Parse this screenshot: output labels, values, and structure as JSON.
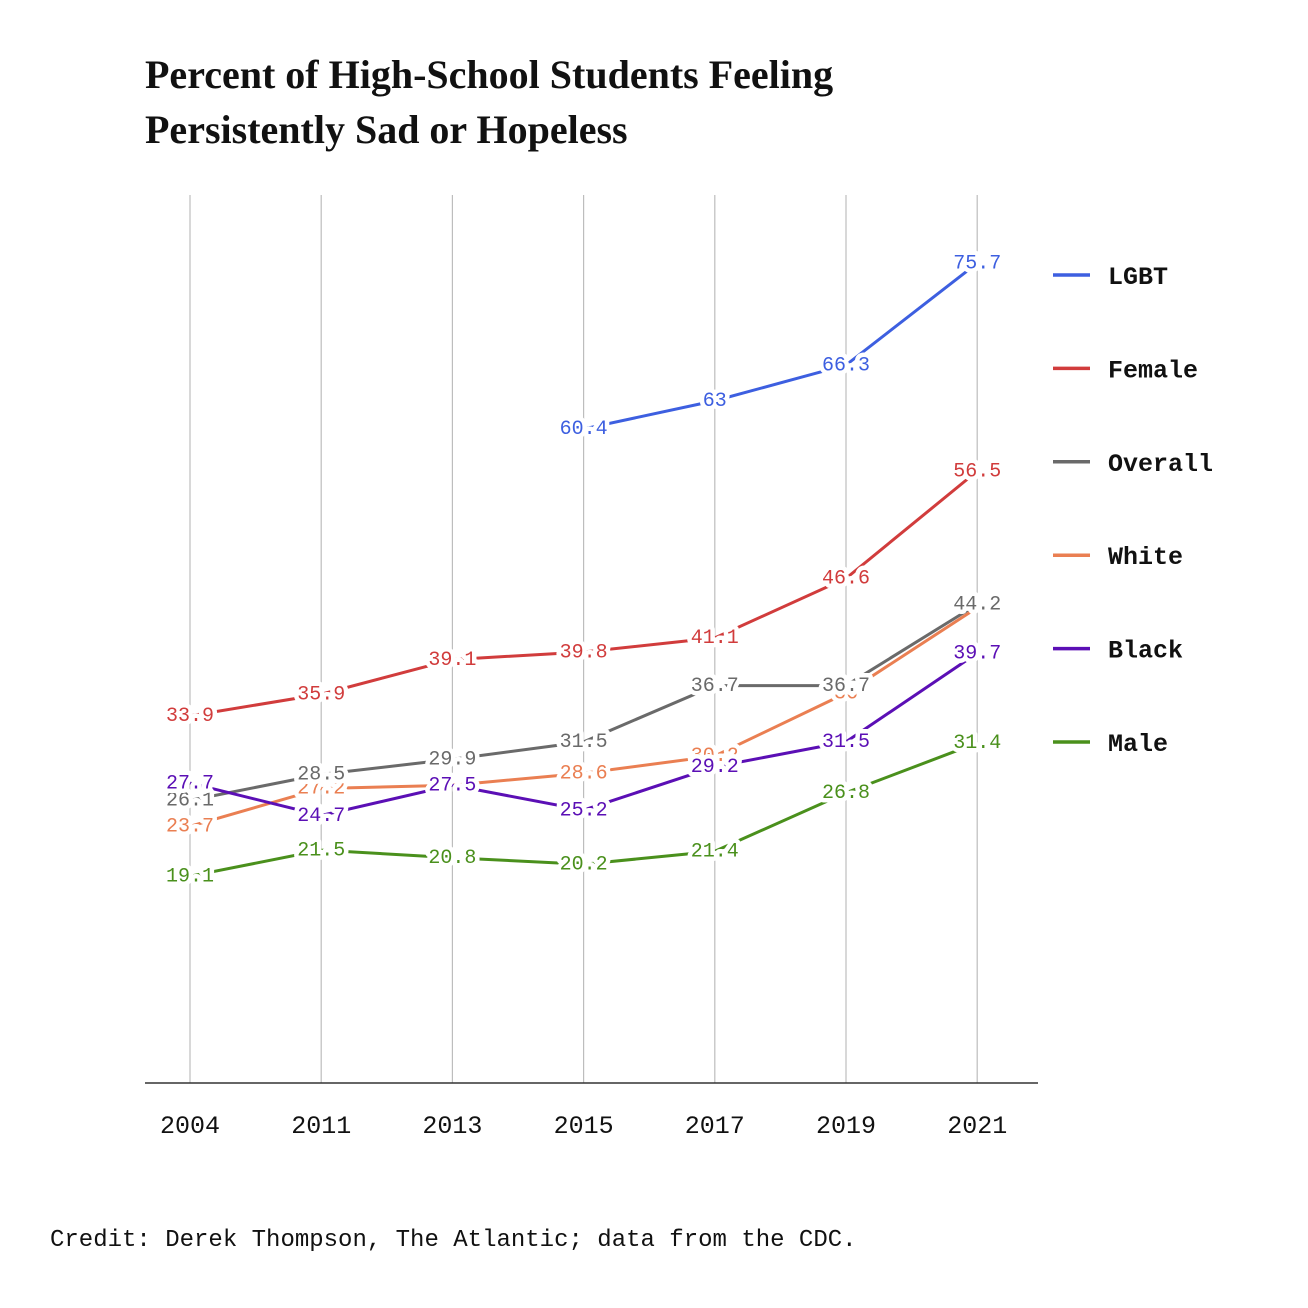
{
  "chart_data": {
    "type": "line",
    "title": "Percent of High-School Students Feeling Persistently Sad or Hopeless",
    "credit": "Credit: Derek Thompson, The Atlantic; data from the CDC.",
    "categories": [
      "2004",
      "2011",
      "2013",
      "2015",
      "2017",
      "2019",
      "2021"
    ],
    "ylim": [
      0,
      82
    ],
    "grid": true,
    "legend": "right",
    "series": [
      {
        "name": "LGBT",
        "color": "#3d5fe0",
        "values": [
          null,
          null,
          null,
          60.4,
          63,
          66.3,
          75.7
        ]
      },
      {
        "name": "Female",
        "color": "#d13c3c",
        "values": [
          33.9,
          35.9,
          39.1,
          39.8,
          41.1,
          46.6,
          56.5
        ]
      },
      {
        "name": "Overall",
        "color": "#6a6a6a",
        "values": [
          26.1,
          28.5,
          29.9,
          31.5,
          36.7,
          36.7,
          44.2
        ]
      },
      {
        "name": "White",
        "color": "#ea7f52",
        "values": [
          23.7,
          27.2,
          27.5,
          28.6,
          30.2,
          36,
          43.9
        ],
        "value_labels": [
          "23.7",
          "27.2",
          "27.5",
          "28.6",
          "30.2",
          "36",
          null
        ]
      },
      {
        "name": "Black",
        "color": "#5b0fb5",
        "values": [
          27.7,
          24.7,
          27.5,
          25.2,
          29.2,
          31.5,
          39.7
        ]
      },
      {
        "name": "Male",
        "color": "#4a901c",
        "values": [
          19.1,
          21.5,
          20.8,
          20.2,
          21.4,
          26.8,
          31.4
        ]
      }
    ]
  }
}
